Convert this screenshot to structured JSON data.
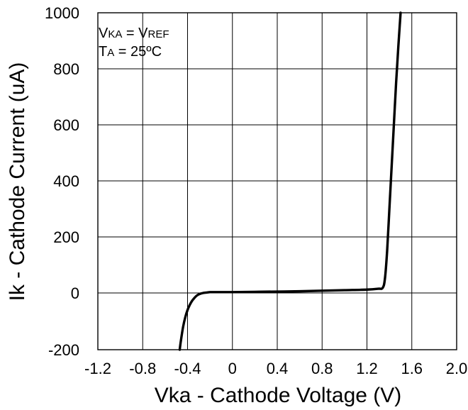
{
  "chart_data": {
    "type": "line",
    "title": "",
    "xlabel": "Vka - Cathode Voltage (V)",
    "ylabel": "Ik - Cathode Current (uA)",
    "xlim": [
      -1.2,
      2.0
    ],
    "ylim": [
      -200,
      1000
    ],
    "y_zero_at": 0,
    "x_ticks": [
      -1.2,
      -0.8,
      -0.4,
      0,
      0.4,
      0.8,
      1.2,
      1.6,
      2.0
    ],
    "x_tick_labels": [
      "-1.2",
      "-0.8",
      "-0.4",
      "0",
      "0.4",
      "0.8",
      "1.2",
      "1.6",
      "2.0"
    ],
    "y_ticks": [
      -200,
      0,
      200,
      400,
      600,
      800,
      1000
    ],
    "y_tick_labels": [
      "-200",
      "0",
      "200",
      "400",
      "600",
      "800",
      "1000"
    ],
    "grid": true,
    "annotations": [
      {
        "id": "vka-vref",
        "parts": [
          {
            "text": "V",
            "style": "main"
          },
          {
            "text": "KA",
            "style": "sub"
          },
          {
            "text": " = V",
            "style": "main"
          },
          {
            "text": "REF",
            "style": "sub"
          }
        ]
      },
      {
        "id": "ta-25c",
        "parts": [
          {
            "text": "T",
            "style": "main"
          },
          {
            "text": "A",
            "style": "sub"
          },
          {
            "text": " = 25ºC",
            "style": "main"
          }
        ]
      }
    ],
    "series": [
      {
        "color": "#000000",
        "x": [
          -0.47,
          -0.46,
          -0.44,
          -0.42,
          -0.4,
          -0.38,
          -0.36,
          -0.34,
          -0.32,
          -0.3,
          -0.28,
          -0.26,
          -0.24,
          -0.22,
          -0.2,
          -0.15,
          -0.1,
          0.0,
          0.2,
          0.4,
          0.6,
          0.8,
          1.0,
          1.2,
          1.3,
          1.34,
          1.36,
          1.38,
          1.4,
          1.42,
          1.44,
          1.46,
          1.48,
          1.5
        ],
        "y": [
          -200,
          -170,
          -120,
          -85,
          -60,
          -42,
          -28,
          -18,
          -10,
          -5,
          -2,
          0,
          1,
          2,
          3,
          3,
          3,
          3,
          4,
          5,
          6,
          8,
          10,
          12,
          15,
          18,
          50,
          150,
          300,
          450,
          600,
          750,
          880,
          1000
        ]
      }
    ]
  }
}
